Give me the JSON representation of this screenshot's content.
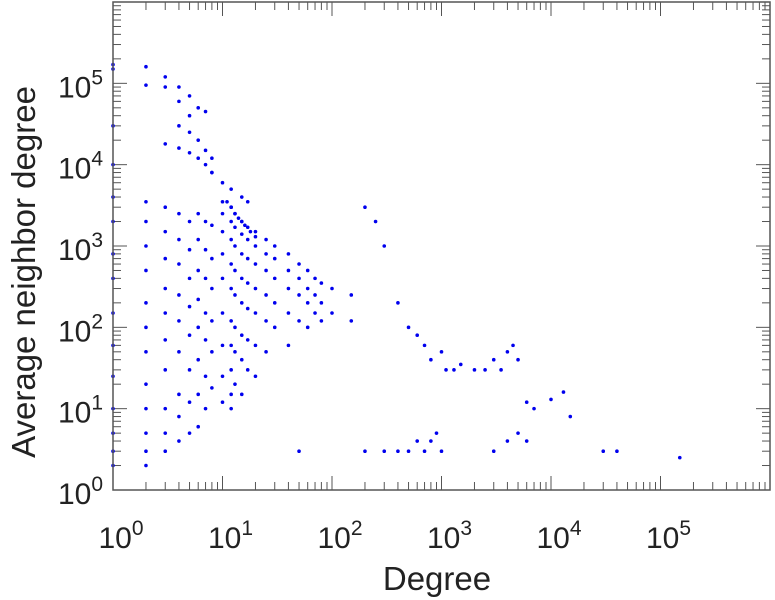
{
  "chart_data": {
    "type": "scatter",
    "title": "",
    "xlabel": "Degree",
    "ylabel": "Average neighbor degree",
    "x_scale": "log",
    "y_scale": "log",
    "xlim": [
      1,
      1000000
    ],
    "ylim": [
      1,
      1000000
    ],
    "x_ticks": [
      {
        "base": "10",
        "exp": "0"
      },
      {
        "base": "10",
        "exp": "1"
      },
      {
        "base": "10",
        "exp": "2"
      },
      {
        "base": "10",
        "exp": "3"
      },
      {
        "base": "10",
        "exp": "4"
      },
      {
        "base": "10",
        "exp": "5"
      }
    ],
    "y_ticks": [
      {
        "base": "10",
        "exp": "0"
      },
      {
        "base": "10",
        "exp": "1"
      },
      {
        "base": "10",
        "exp": "2"
      },
      {
        "base": "10",
        "exp": "3"
      },
      {
        "base": "10",
        "exp": "4"
      },
      {
        "base": "10",
        "exp": "5"
      }
    ],
    "grid": false,
    "marker_color": "#0000ee",
    "axis_color": "#555555",
    "series": [
      {
        "x": [
          1,
          1,
          1,
          1,
          1,
          1,
          1,
          1,
          1,
          1,
          1,
          1,
          1,
          1,
          1,
          2,
          2,
          2,
          2,
          2,
          2,
          2,
          2,
          2,
          2,
          2,
          2,
          2,
          2,
          3,
          3,
          3,
          3,
          3,
          3,
          3,
          3,
          3,
          3,
          3,
          3,
          4,
          4,
          4,
          4,
          4,
          4,
          4,
          4,
          4,
          4,
          4,
          4,
          5,
          5,
          5,
          5,
          5,
          5,
          5,
          5,
          5,
          5,
          5,
          6,
          6,
          6,
          6,
          6,
          6,
          6,
          6,
          6,
          6,
          7,
          7,
          7,
          7,
          7,
          7,
          7,
          7,
          7,
          8,
          8,
          8,
          8,
          8,
          8,
          8,
          8,
          10,
          10,
          10,
          10,
          10,
          10,
          10,
          10,
          10,
          12,
          12,
          12,
          12,
          12,
          12,
          12,
          12,
          12,
          12,
          13,
          13,
          13,
          13,
          13,
          13,
          13,
          13,
          15,
          15,
          15,
          15,
          15,
          15,
          15,
          15,
          17,
          17,
          17,
          17,
          17,
          17,
          17,
          20,
          20,
          20,
          20,
          20,
          20,
          20,
          25,
          25,
          25,
          25,
          25,
          25,
          30,
          30,
          30,
          30,
          30,
          40,
          40,
          40,
          40,
          40,
          50,
          50,
          50,
          50,
          60,
          60,
          60,
          60,
          70,
          70,
          70,
          80,
          80,
          80,
          100,
          100,
          150,
          150,
          200,
          250,
          300,
          400,
          500,
          600,
          700,
          800,
          1000,
          1100,
          1300,
          1500,
          2000,
          2500,
          3000,
          3500,
          4000,
          4500,
          5000,
          6000,
          7000,
          10000,
          13000,
          15000,
          30000,
          40000,
          150000,
          300,
          400,
          500,
          600,
          700,
          800,
          900,
          1000,
          3000,
          4000,
          5000,
          6000,
          3,
          4,
          5,
          6,
          7,
          8,
          10,
          12,
          15,
          17,
          11,
          12,
          13,
          14,
          15,
          16,
          18,
          20,
          50,
          200
        ],
        "y": [
          170000,
          150000,
          30000,
          10000,
          4000,
          2000,
          800,
          400,
          150,
          60,
          25,
          10,
          5,
          3,
          2,
          160000,
          95000,
          3500,
          2000,
          1000,
          500,
          200,
          100,
          50,
          20,
          10,
          5,
          3,
          2,
          120000,
          90000,
          3000,
          1500,
          700,
          300,
          150,
          70,
          30,
          10,
          5,
          3,
          90000,
          60000,
          30000,
          2500,
          1200,
          600,
          250,
          120,
          50,
          15,
          8,
          4,
          70000,
          40000,
          25000,
          2000,
          900,
          400,
          180,
          80,
          30,
          12,
          5,
          50000,
          20000,
          2500,
          1200,
          500,
          220,
          100,
          40,
          15,
          6,
          45000,
          15000,
          2000,
          900,
          400,
          150,
          70,
          25,
          10,
          12000,
          8000,
          1800,
          700,
          300,
          120,
          50,
          18,
          3500,
          2500,
          1500,
          800,
          400,
          150,
          60,
          25,
          12,
          3000,
          2000,
          1200,
          600,
          300,
          120,
          60,
          30,
          15,
          10,
          2500,
          1700,
          1000,
          500,
          250,
          100,
          50,
          20,
          2000,
          1400,
          800,
          400,
          200,
          80,
          40,
          15,
          1700,
          1200,
          700,
          350,
          170,
          70,
          30,
          1500,
          1000,
          600,
          300,
          150,
          60,
          25,
          1200,
          800,
          500,
          250,
          120,
          50,
          1000,
          700,
          400,
          200,
          100,
          800,
          500,
          300,
          150,
          60,
          600,
          400,
          250,
          120,
          500,
          300,
          200,
          100,
          400,
          250,
          150,
          350,
          200,
          120,
          300,
          150,
          250,
          120,
          3000,
          2000,
          1000,
          200,
          100,
          80,
          60,
          40,
          50,
          30,
          30,
          35,
          30,
          30,
          40,
          30,
          50,
          60,
          40,
          12,
          10,
          13,
          16,
          8,
          3,
          3,
          2.5,
          3,
          3,
          3,
          4,
          3,
          4,
          5,
          3,
          3,
          4,
          5,
          4,
          18000,
          16000,
          14000,
          12000,
          10000,
          8000,
          6000,
          5000,
          4000,
          3500,
          3500,
          3000,
          2500,
          2200,
          2000,
          1800,
          1500,
          1300,
          3,
          3
        ]
      }
    ]
  }
}
